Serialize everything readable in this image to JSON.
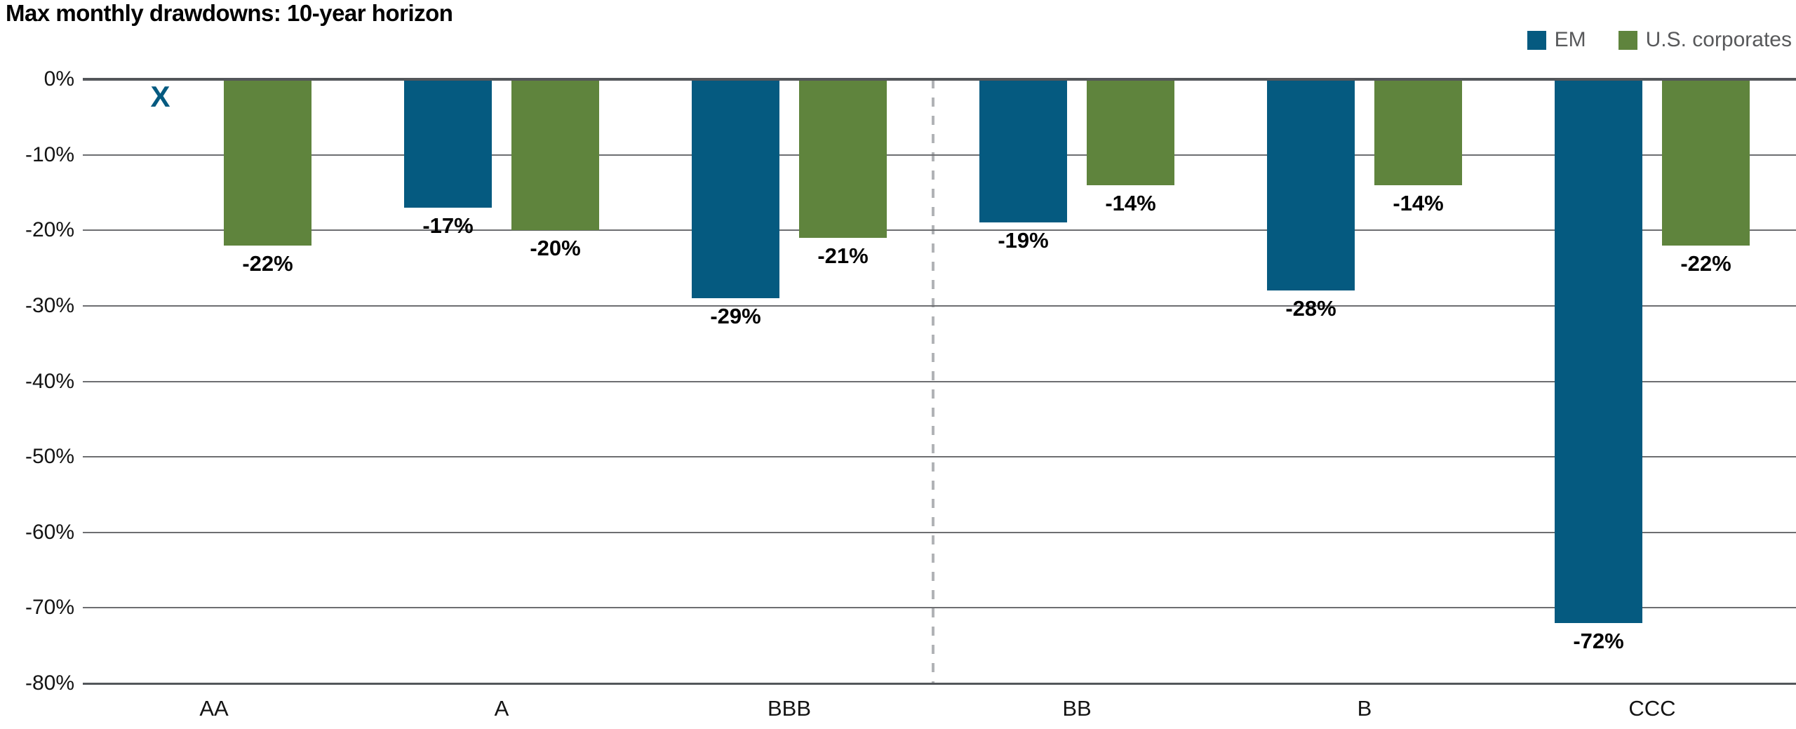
{
  "header": {
    "title": "Max monthly drawdowns: 10-year horizon"
  },
  "chart_data": {
    "type": "bar",
    "title": "Max monthly drawdowns: 10-year horizon",
    "categories": [
      "AA",
      "A",
      "BBB",
      "BB",
      "B",
      "CCC"
    ],
    "series": [
      {
        "name": "EM",
        "color": "#055A80",
        "values": [
          null,
          -17,
          -29,
          -19,
          -28,
          -72
        ],
        "missing_marker": "X"
      },
      {
        "name": "U.S. corporates",
        "color": "#5F843D",
        "values": [
          -22,
          -20,
          -21,
          -14,
          -14,
          -22
        ]
      }
    ],
    "value_label_format": "{v}%",
    "ylim": [
      -80,
      0
    ],
    "yticks": [
      0,
      -10,
      -20,
      -30,
      -40,
      -50,
      -60,
      -70,
      -80
    ],
    "ytick_labels": [
      "0%",
      "-10%",
      "-20%",
      "-30%",
      "-40%",
      "-50%",
      "-60%",
      "-70%",
      "-80%"
    ],
    "grid": "horizontal",
    "legend_position": "top-right",
    "divider": {
      "after_category": "BBB",
      "style": "dashed"
    }
  },
  "colors": {
    "em": "#055A80",
    "us_corporates": "#5F843D",
    "gridline": "#6D6E71",
    "zero_axis": "#53565A",
    "bottom_axis": "#53565A",
    "divider": "#B1B3B6",
    "legend_text": "#58595B",
    "label_text": "#000000"
  }
}
